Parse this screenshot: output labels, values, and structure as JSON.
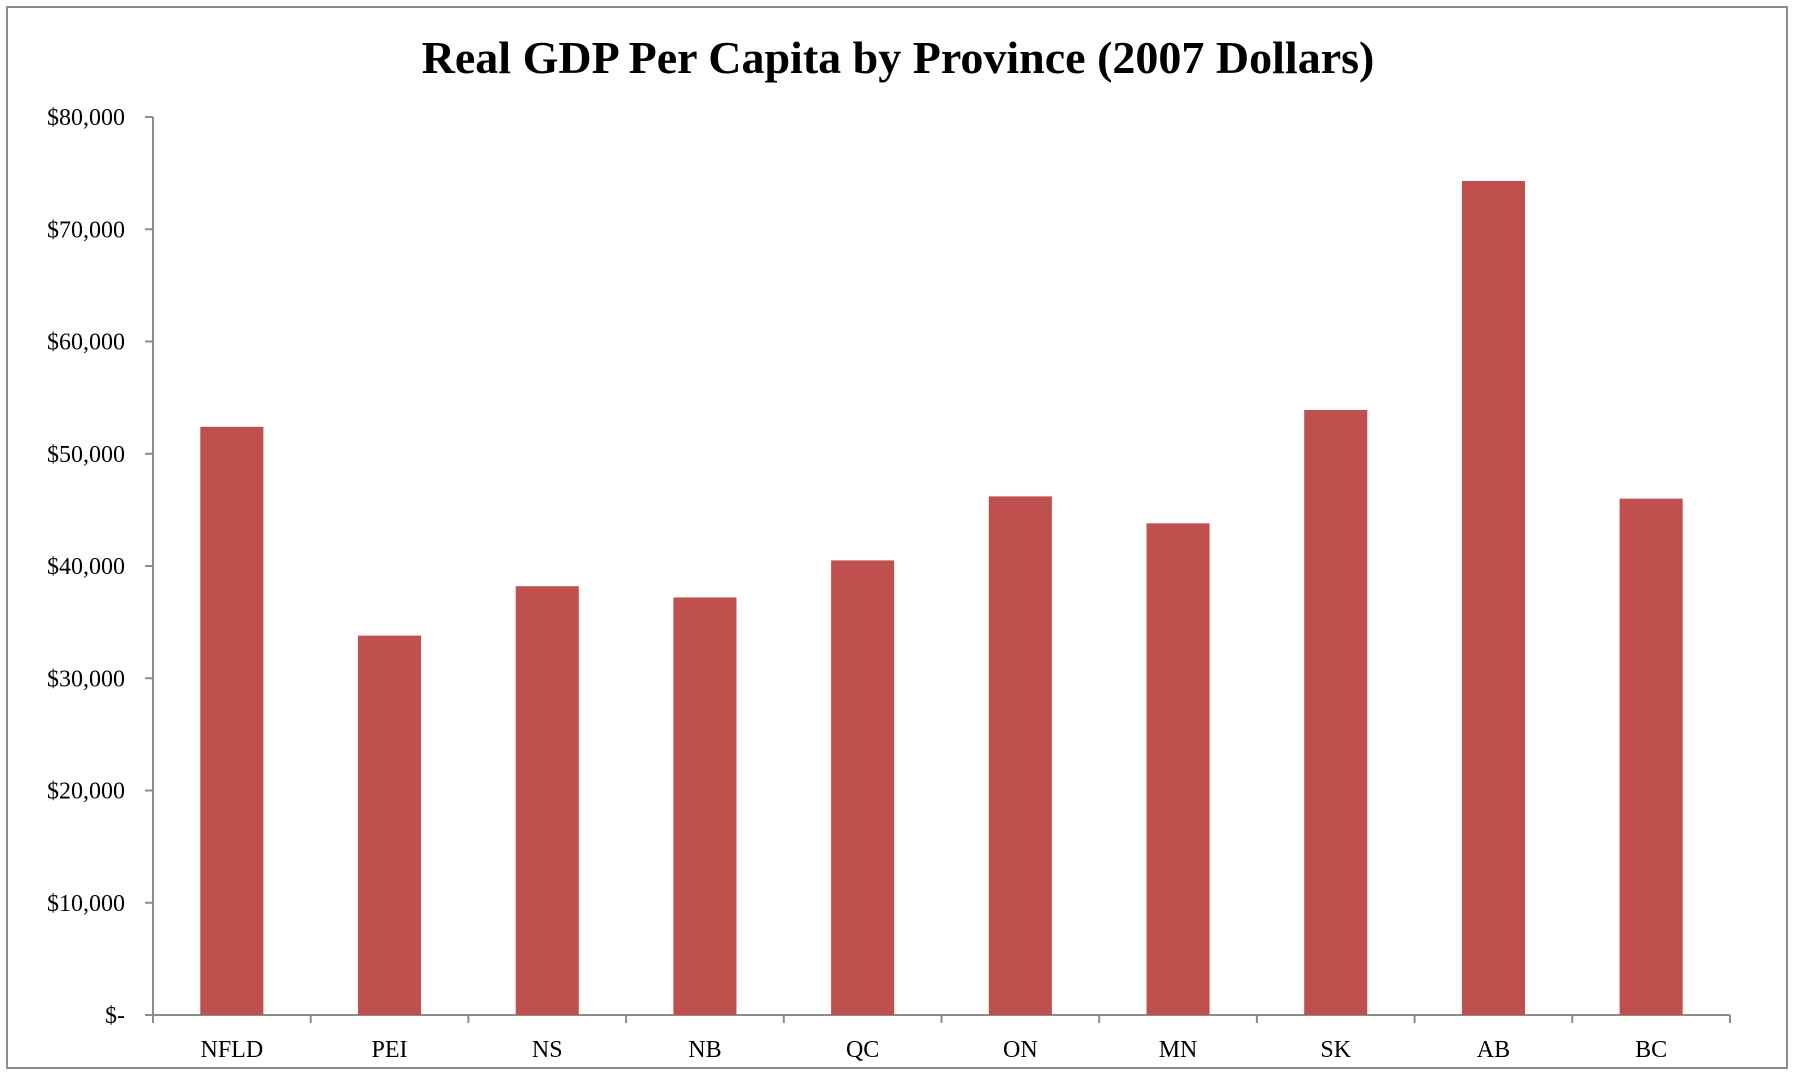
{
  "chart_data": {
    "type": "bar",
    "title": "Real GDP Per Capita by Province (2007 Dollars)",
    "xlabel": "",
    "ylabel": "",
    "categories": [
      "NFLD",
      "PEI",
      "NS",
      "NB",
      "QC",
      "ON",
      "MN",
      "SK",
      "AB",
      "BC"
    ],
    "values": [
      52400,
      33800,
      38200,
      37200,
      40500,
      46200,
      43800,
      53900,
      74300,
      46000
    ],
    "ylim": [
      0,
      80000
    ],
    "y_ticks": [
      0,
      10000,
      20000,
      30000,
      40000,
      50000,
      60000,
      70000,
      80000
    ],
    "y_tick_labels": [
      "$-",
      "$10,000",
      "$20,000",
      "$30,000",
      "$40,000",
      "$50,000",
      "$60,000",
      "$70,000",
      "$80,000"
    ],
    "grid": false,
    "legend": "none",
    "bar_color": "#c0504d",
    "axis_color": "#8c8c8c"
  }
}
